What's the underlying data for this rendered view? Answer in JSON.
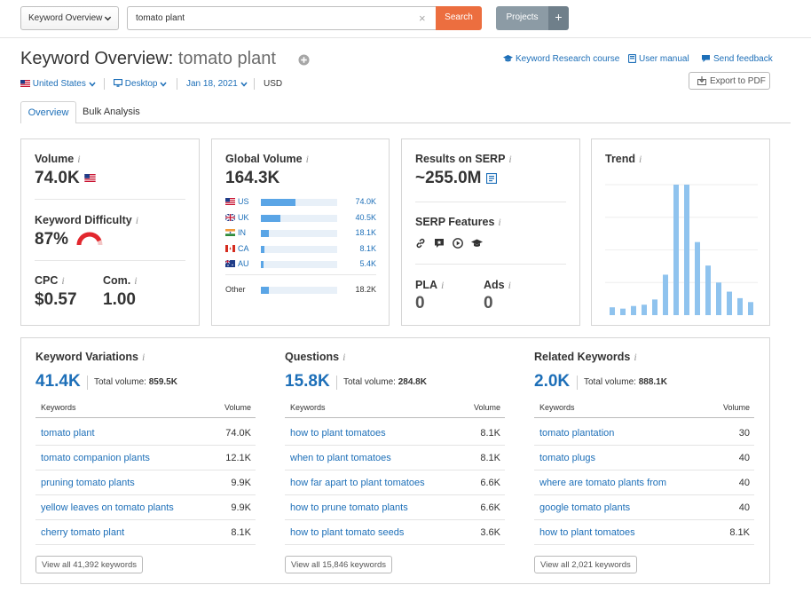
{
  "topbar": {
    "db_select": "Keyword Overview",
    "search_value": "tomato plant",
    "search_label": "Search",
    "projects_label": "Projects",
    "plus_label": "+"
  },
  "header": {
    "title_prefix": "Keyword Overview:",
    "title_keyword": "tomato plant",
    "links": [
      "Keyword Research course",
      "User manual",
      "Send feedback"
    ],
    "country": "United States",
    "device": "Desktop",
    "date": "Jan 18, 2021",
    "currency": "USD",
    "export_label": "Export to PDF"
  },
  "tabs": [
    "Overview",
    "Bulk Analysis"
  ],
  "volume": {
    "label": "Volume",
    "value": "74.0K"
  },
  "difficulty": {
    "label": "Keyword Difficulty",
    "value": "87%",
    "level": 0.87
  },
  "cpc": {
    "label": "CPC",
    "value": "$0.57"
  },
  "com": {
    "label": "Com.",
    "value": "1.00"
  },
  "global_volume": {
    "label": "Global Volume",
    "value": "164.3K",
    "countries": [
      {
        "code": "US",
        "value": "74.0K",
        "share": 0.45
      },
      {
        "code": "UK",
        "value": "40.5K",
        "share": 0.25
      },
      {
        "code": "IN",
        "value": "18.1K",
        "share": 0.11
      },
      {
        "code": "CA",
        "value": "8.1K",
        "share": 0.05
      },
      {
        "code": "AU",
        "value": "5.4K",
        "share": 0.035
      }
    ],
    "other": {
      "label": "Other",
      "value": "18.2K",
      "share": 0.11
    }
  },
  "results_on_serp": {
    "label": "Results on SERP",
    "value": "~255.0M"
  },
  "serp_features": {
    "label": "SERP Features",
    "icons": [
      "link-icon",
      "review-icon",
      "video-icon",
      "education-icon"
    ]
  },
  "pla": {
    "label": "PLA",
    "value": "0"
  },
  "ads": {
    "label": "Ads",
    "value": "0"
  },
  "trend": {
    "label": "Trend",
    "values": [
      0.06,
      0.05,
      0.07,
      0.08,
      0.12,
      0.31,
      1.0,
      1.0,
      0.56,
      0.38,
      0.25,
      0.18,
      0.13,
      0.1
    ]
  },
  "keyword_variations": {
    "title": "Keyword Variations",
    "count": "41.4K",
    "total_label": "Total volume:",
    "total_value": "859.5K",
    "col_keywords": "Keywords",
    "col_volume": "Volume",
    "rows": [
      {
        "keyword": "tomato plant",
        "volume": "74.0K"
      },
      {
        "keyword": "tomato companion plants",
        "volume": "12.1K"
      },
      {
        "keyword": "pruning tomato plants",
        "volume": "9.9K"
      },
      {
        "keyword": "yellow leaves on tomato plants",
        "volume": "9.9K"
      },
      {
        "keyword": "cherry tomato plant",
        "volume": "8.1K"
      }
    ],
    "view_all": "View all 41,392 keywords"
  },
  "questions": {
    "title": "Questions",
    "count": "15.8K",
    "total_label": "Total volume:",
    "total_value": "284.8K",
    "col_keywords": "Keywords",
    "col_volume": "Volume",
    "rows": [
      {
        "keyword": "how to plant tomatoes",
        "volume": "8.1K"
      },
      {
        "keyword": "when to plant tomatoes",
        "volume": "8.1K"
      },
      {
        "keyword": "how far apart to plant tomatoes",
        "volume": "6.6K"
      },
      {
        "keyword": "how to prune tomato plants",
        "volume": "6.6K"
      },
      {
        "keyword": "how to plant tomato seeds",
        "volume": "3.6K"
      }
    ],
    "view_all": "View all 15,846 keywords"
  },
  "related_keywords": {
    "title": "Related Keywords",
    "count": "2.0K",
    "total_label": "Total volume:",
    "total_value": "888.1K",
    "col_keywords": "Keywords",
    "col_volume": "Volume",
    "rows": [
      {
        "keyword": "tomato plantation",
        "volume": "30"
      },
      {
        "keyword": "tomato plugs",
        "volume": "40"
      },
      {
        "keyword": "where are tomato plants from",
        "volume": "40"
      },
      {
        "keyword": "google tomato plants",
        "volume": "40"
      },
      {
        "keyword": "how to plant tomatoes",
        "volume": "8.1K"
      }
    ],
    "view_all": "View all 2,021 keywords"
  },
  "colors": {
    "accent_blue": "#1d6fb8",
    "search_orange": "#ec6e3f",
    "bar_blue": "#5aa5e6",
    "trend_blue": "#8fc3ee",
    "difficulty_red": "#e2272e"
  }
}
